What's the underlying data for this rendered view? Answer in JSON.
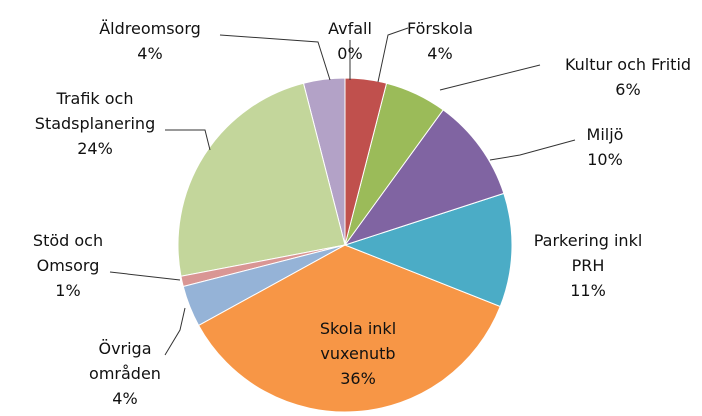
{
  "chart_data": {
    "type": "pie",
    "categories": [
      "Avfall",
      "Förskola",
      "Kultur och Fritid",
      "Miljö",
      "Parkering inkl PRH",
      "Skola inkl vuxenutb",
      "Övriga områden",
      "Stöd och Omsorg",
      "Trafik och Stadsplanering",
      "Äldreomsorg"
    ],
    "values": [
      0,
      4,
      6,
      10,
      11,
      36,
      4,
      1,
      24,
      4
    ],
    "value_labels": [
      "0%",
      "4%",
      "6%",
      "10%",
      "11%",
      "36%",
      "4%",
      "1%",
      "24%",
      "4%"
    ],
    "colors": [
      "#4472c4",
      "#c0504d",
      "#9bbb59",
      "#8064a2",
      "#4bacc6",
      "#f79646",
      "#95b3d7",
      "#d99694",
      "#c3d69b",
      "#b3a2c7"
    ]
  }
}
